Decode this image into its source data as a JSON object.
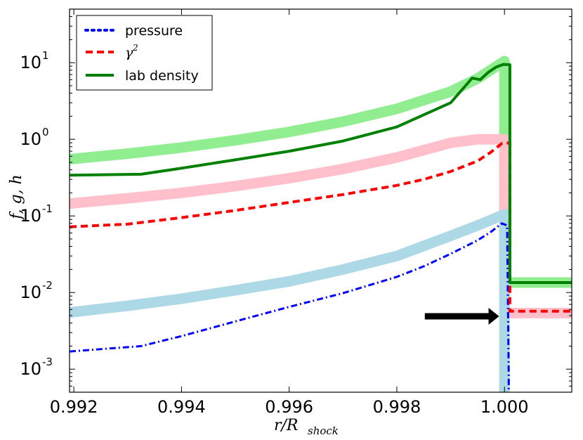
{
  "chart_data": {
    "type": "line",
    "title": "",
    "xlabel": "r/R_shock",
    "xlabel_main": "r/R",
    "xlabel_sub": "shock",
    "ylabel": "f, g, h",
    "xscale": "linear",
    "yscale": "log",
    "xlim": [
      0.99192,
      1.00125
    ],
    "ylim": [
      0.0005,
      50
    ],
    "x_ticks": [
      0.992,
      0.994,
      0.996,
      0.998,
      1.0
    ],
    "x_tick_labels": [
      "0.992",
      "0.994",
      "0.996",
      "0.998",
      "1.000"
    ],
    "y_ticks": [
      0.001,
      0.01,
      0.1,
      1,
      10
    ],
    "y_tick_mantissa": [
      "10",
      "10",
      "10",
      "10",
      "10"
    ],
    "y_tick_exponents": [
      "-3",
      "-2",
      "-1",
      "0",
      "1"
    ],
    "legend_position": "top-left",
    "legend": [
      {
        "label": "pressure",
        "style": "dash-dot",
        "color": "#0000ff"
      },
      {
        "label": "γ",
        "superscript": "2",
        "style": "dashed",
        "color": "#ff0000"
      },
      {
        "label": "lab density",
        "style": "solid",
        "color": "#008000"
      }
    ],
    "series": [
      {
        "name": "pressure",
        "color": "#0000ff",
        "style": "dash-dot",
        "width": 3,
        "x": [
          0.99192,
          0.99325,
          0.994,
          0.995,
          0.996,
          0.997,
          0.998,
          0.9985,
          0.999,
          0.9995,
          0.99975,
          0.99995,
          1.00005,
          1.00008,
          1.00008
        ],
        "y": [
          0.0017,
          0.002,
          0.0027,
          0.0042,
          0.0065,
          0.0098,
          0.016,
          0.022,
          0.032,
          0.048,
          0.062,
          0.08,
          0.075,
          0.0008,
          0.0005
        ]
      },
      {
        "name": "γ²",
        "color": "#ff0000",
        "style": "dashed",
        "width": 4,
        "x": [
          0.99192,
          0.993,
          0.994,
          0.995,
          0.996,
          0.997,
          0.998,
          0.9985,
          0.999,
          0.9995,
          0.99975,
          0.99995,
          1.0001,
          1.0001,
          1.00125
        ],
        "y": [
          0.072,
          0.078,
          0.095,
          0.118,
          0.15,
          0.19,
          0.25,
          0.3,
          0.38,
          0.52,
          0.68,
          0.88,
          0.9,
          0.0057,
          0.0057
        ]
      },
      {
        "name": "lab density",
        "color": "#008000",
        "style": "solid",
        "width": 4,
        "x": [
          0.99192,
          0.99325,
          0.994,
          0.995,
          0.996,
          0.997,
          0.998,
          0.999,
          0.9994,
          0.99955,
          0.9997,
          0.99985,
          0.99998,
          1.0001,
          1.0001,
          1.00125
        ],
        "y": [
          0.34,
          0.35,
          0.42,
          0.54,
          0.7,
          0.95,
          1.45,
          3.0,
          6.3,
          6.0,
          7.5,
          8.8,
          9.5,
          9.4,
          0.0135,
          0.0135
        ]
      }
    ],
    "reference_curves": [
      {
        "name": "lab density (analytic)",
        "color": "#90ee90",
        "width": 15,
        "x": [
          0.99192,
          0.993,
          0.994,
          0.995,
          0.996,
          0.997,
          0.998,
          0.999,
          0.9995,
          1.0,
          1.0,
          1.00125
        ],
        "y": [
          0.55,
          0.65,
          0.78,
          0.97,
          1.25,
          1.7,
          2.5,
          4.2,
          6.2,
          10.5,
          0.0135,
          0.0135
        ]
      },
      {
        "name": "γ² (analytic)",
        "color": "#ffc0cb",
        "width": 15,
        "x": [
          0.99192,
          0.993,
          0.994,
          0.995,
          0.996,
          0.997,
          0.998,
          0.999,
          0.9995,
          1.0,
          1.0,
          1.00125
        ],
        "y": [
          0.145,
          0.17,
          0.2,
          0.245,
          0.31,
          0.41,
          0.58,
          0.9,
          1.0,
          1.0,
          0.0054,
          0.0054
        ]
      },
      {
        "name": "pressure (analytic)",
        "color": "#add8e6",
        "width": 15,
        "x": [
          0.99192,
          0.993,
          0.994,
          0.995,
          0.996,
          0.997,
          0.998,
          0.999,
          0.9995,
          1.0,
          1.0
        ],
        "y": [
          0.0055,
          0.0067,
          0.0083,
          0.0107,
          0.014,
          0.02,
          0.03,
          0.055,
          0.075,
          0.105,
          0.0005
        ]
      }
    ],
    "annotations": [
      {
        "type": "arrow",
        "direction": "right",
        "x_start": 0.99852,
        "x_end": 0.9999,
        "y": 0.0049,
        "color": "#000000"
      }
    ]
  }
}
